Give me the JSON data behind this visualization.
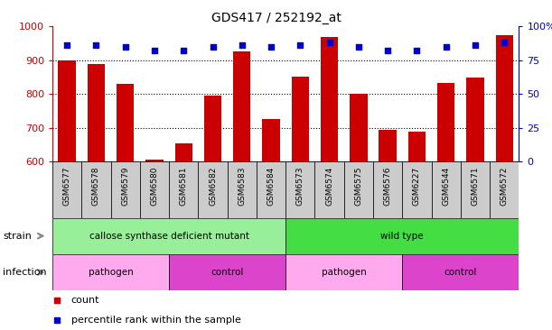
{
  "title": "GDS417 / 252192_at",
  "samples": [
    "GSM6577",
    "GSM6578",
    "GSM6579",
    "GSM6580",
    "GSM6581",
    "GSM6582",
    "GSM6583",
    "GSM6584",
    "GSM6573",
    "GSM6574",
    "GSM6575",
    "GSM6576",
    "GSM6227",
    "GSM6544",
    "GSM6571",
    "GSM6572"
  ],
  "counts": [
    900,
    890,
    830,
    605,
    655,
    795,
    925,
    727,
    852,
    968,
    800,
    693,
    688,
    833,
    850,
    975
  ],
  "percentiles": [
    86,
    86,
    85,
    82,
    82,
    85,
    86,
    85,
    86,
    88,
    85,
    82,
    82,
    85,
    86,
    88
  ],
  "ymin": 600,
  "ymax": 1000,
  "yticks": [
    600,
    700,
    800,
    900,
    1000
  ],
  "y2min": 0,
  "y2max": 100,
  "y2ticks": [
    0,
    25,
    50,
    75,
    100
  ],
  "bar_color": "#CC0000",
  "dot_color": "#0000CC",
  "strain_labels": [
    {
      "label": "callose synthase deficient mutant",
      "start": 0,
      "end": 8,
      "color": "#99EE99"
    },
    {
      "label": "wild type",
      "start": 8,
      "end": 16,
      "color": "#44DD44"
    }
  ],
  "infection_labels": [
    {
      "label": "pathogen",
      "start": 0,
      "end": 4,
      "color": "#FFAAEE"
    },
    {
      "label": "control",
      "start": 4,
      "end": 8,
      "color": "#DD44CC"
    },
    {
      "label": "pathogen",
      "start": 8,
      "end": 12,
      "color": "#FFAAEE"
    },
    {
      "label": "control",
      "start": 12,
      "end": 16,
      "color": "#DD44CC"
    }
  ],
  "strain_arrow_label": "strain",
  "infection_arrow_label": "infection",
  "legend_count_label": "count",
  "legend_percentile_label": "percentile rank within the sample",
  "tick_color_left": "#CC0000",
  "tick_color_right": "#0000CC",
  "xlabel_bg_color": "#CCCCCC",
  "arrow_color": "#888888",
  "label_left_color": "#000000",
  "grid_yticks": [
    700,
    800,
    900
  ]
}
